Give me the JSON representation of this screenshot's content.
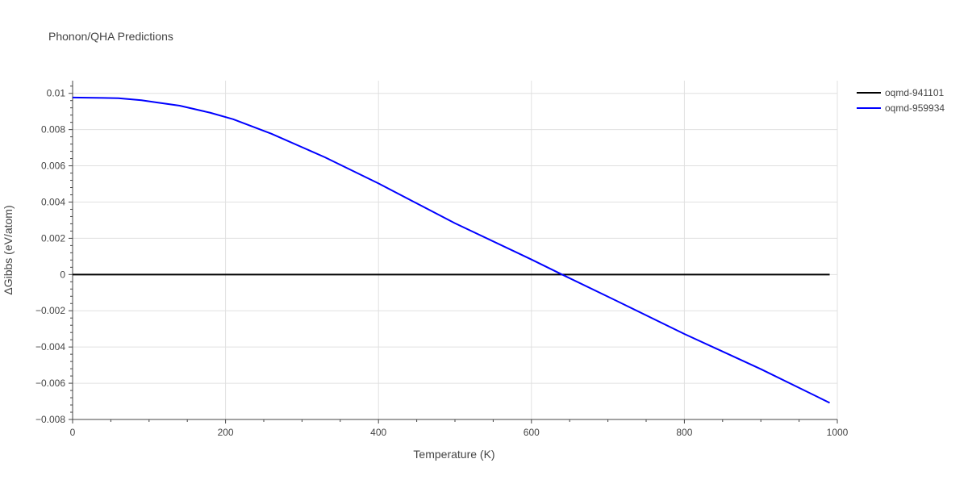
{
  "chart_data": {
    "type": "line",
    "title": "Phonon/QHA Predictions",
    "xlabel": "Temperature (K)",
    "ylabel": "ΔGibbs (eV/atom)",
    "xlim": [
      0,
      1000
    ],
    "ylim": [
      -0.008,
      0.0107
    ],
    "x_ticks": [
      0,
      200,
      400,
      600,
      800,
      1000
    ],
    "x_tick_labels": [
      "0",
      "200",
      "400",
      "600",
      "800",
      "1000"
    ],
    "y_ticks": [
      -0.008,
      -0.006,
      -0.004,
      -0.002,
      0,
      0.002,
      0.004,
      0.006,
      0.008,
      0.01
    ],
    "y_tick_labels": [
      "−0.008",
      "−0.006",
      "−0.004",
      "−0.002",
      "0",
      "0.002",
      "0.004",
      "0.006",
      "0.008",
      "0.01"
    ],
    "grid": true,
    "legend_position": "top-right",
    "series": [
      {
        "name": "oqmd-941101",
        "color": "#000000",
        "x": [
          0,
          990
        ],
        "y": [
          0,
          0
        ]
      },
      {
        "name": "oqmd-959934",
        "color": "#0000ff",
        "x": [
          0,
          20,
          40,
          60,
          90,
          110,
          140,
          180,
          210,
          260,
          330,
          400,
          500,
          600,
          640,
          700,
          800,
          900,
          990
        ],
        "y": [
          0.00977,
          0.00976,
          0.00975,
          0.00973,
          0.00962,
          0.0095,
          0.00932,
          0.00893,
          0.00857,
          0.00777,
          0.00647,
          0.00503,
          0.00283,
          0.00083,
          0.0,
          -0.00122,
          -0.00328,
          -0.00522,
          -0.00708
        ]
      }
    ]
  }
}
